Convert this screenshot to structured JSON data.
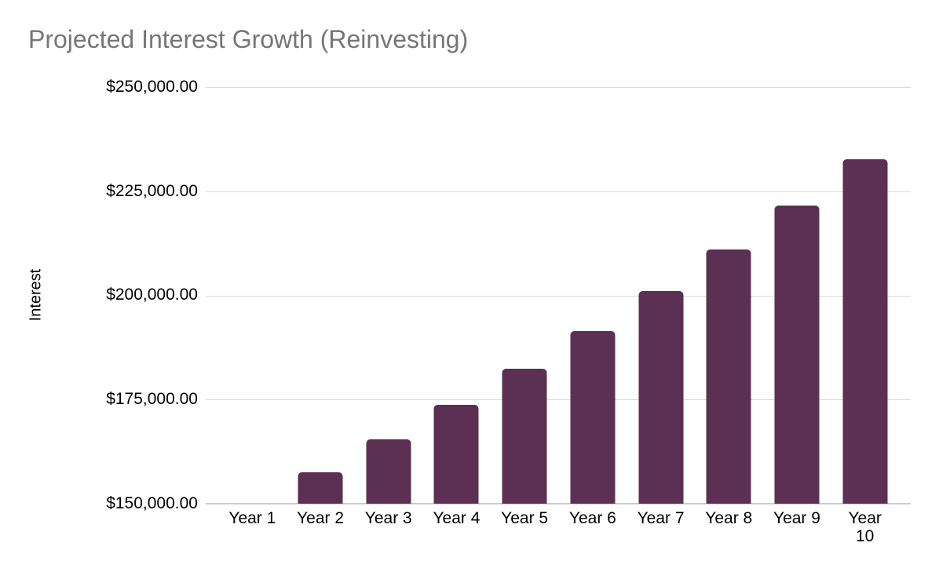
{
  "chart_data": {
    "type": "bar",
    "title": "Projected Interest Growth (Reinvesting)",
    "xlabel": "",
    "ylabel": "Interest",
    "categories": [
      "Year 1",
      "Year 2",
      "Year 3",
      "Year 4",
      "Year 5",
      "Year 6",
      "Year 7",
      "Year 8",
      "Year 9",
      "Year 10"
    ],
    "values": [
      150000.0,
      157500.0,
      165375.0,
      173643.75,
      182325.94,
      191442.23,
      201014.35,
      211065.06,
      221618.31,
      232699.23
    ],
    "ylim": [
      150000,
      250000
    ],
    "y_ticks": [
      150000,
      175000,
      200000,
      225000,
      250000
    ],
    "y_tick_labels": [
      "$150,000.00",
      "$175,000.00",
      "$200,000.00",
      "$225,000.00",
      "$250,000.00"
    ],
    "grid": true,
    "legend": "none",
    "colors": {
      "bar": "#5b3052",
      "title_text": "#767676",
      "axis_text": "#000000",
      "gridline": "#d9d9d9",
      "axis_line": "#cccccc",
      "background": "#ffffff"
    }
  }
}
